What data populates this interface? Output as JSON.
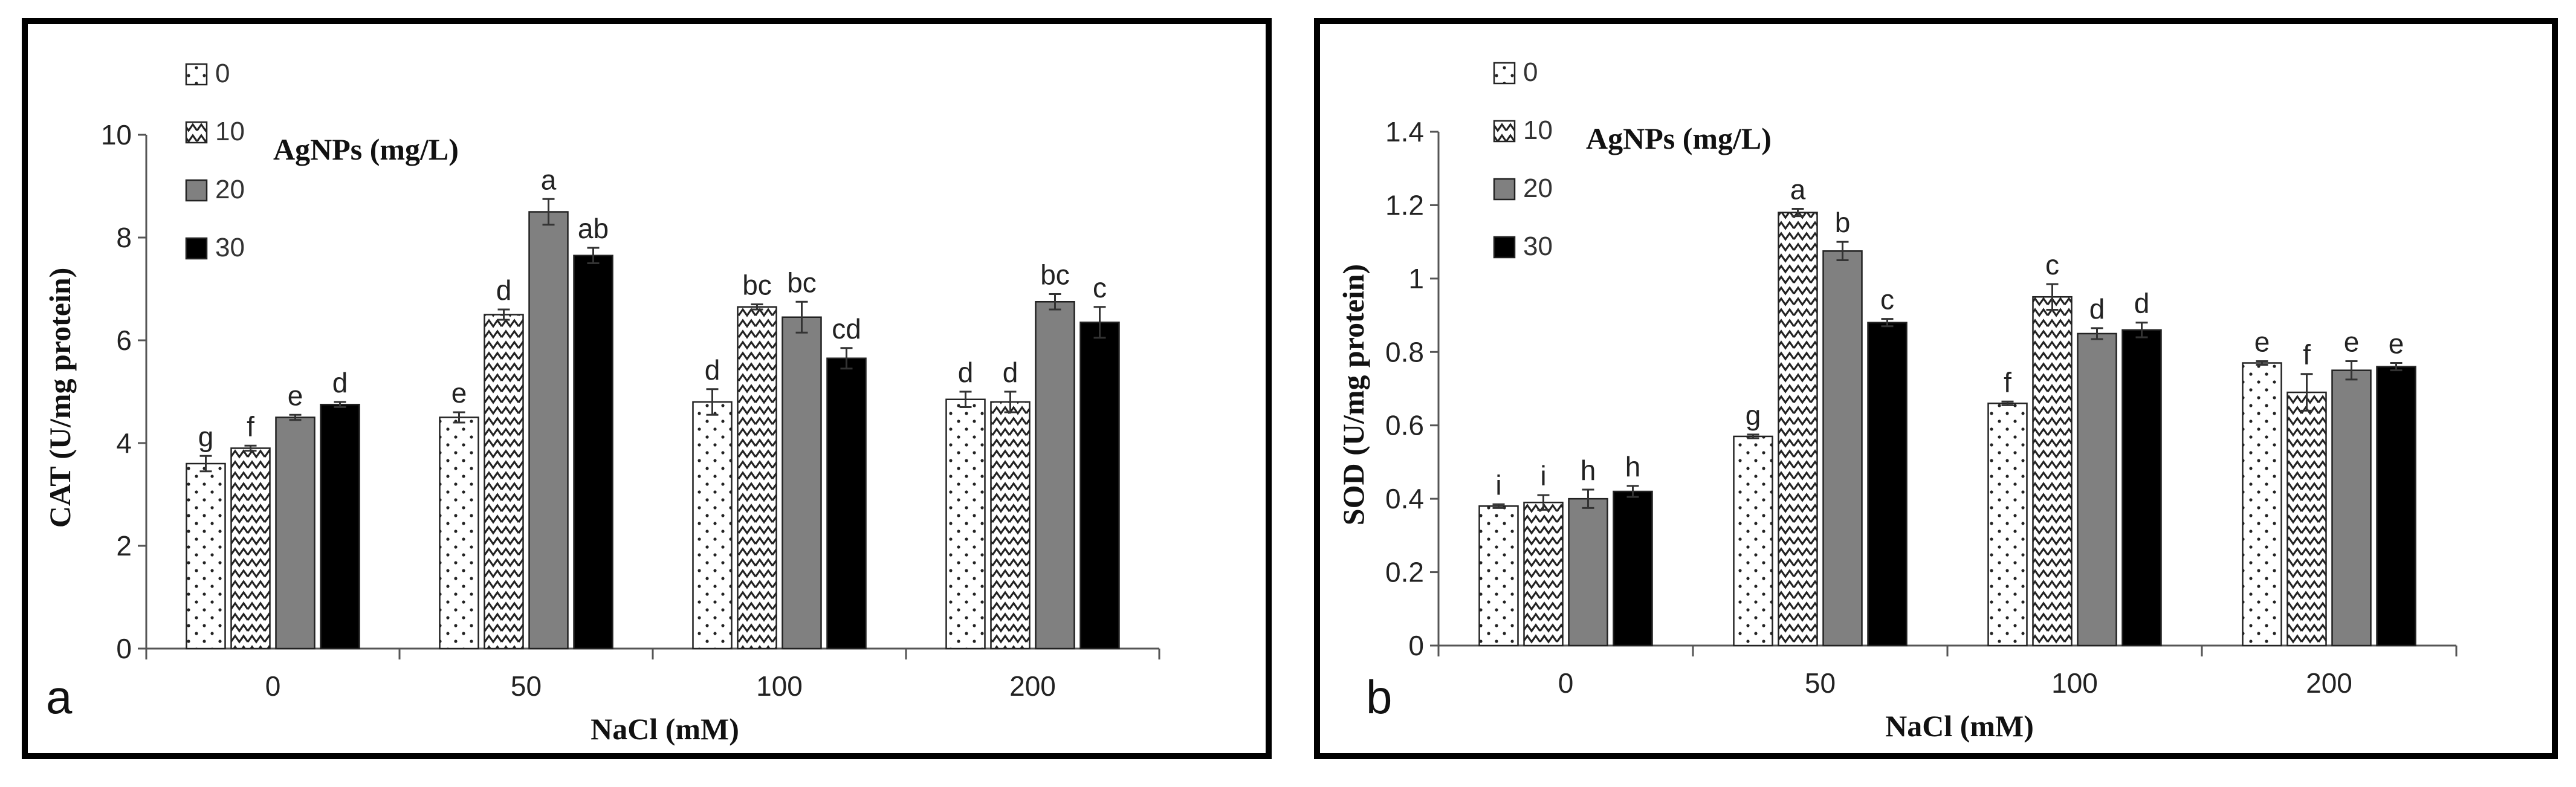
{
  "chart_data": [
    {
      "type": "bar",
      "panel_label": "a",
      "ylabel": "CAT (U/mg protein)",
      "xlabel": "NaCl (mM)",
      "legend_title": "AgNPs (mg/L)",
      "categories": [
        "0",
        "50",
        "100",
        "200"
      ],
      "ylim": [
        0,
        10
      ],
      "yticks": [
        "0",
        "2",
        "4",
        "6",
        "8",
        "10"
      ],
      "series": [
        {
          "name": "0",
          "values": [
            3.6,
            4.5,
            4.8,
            4.85
          ],
          "errors": [
            0.15,
            0.1,
            0.25,
            0.15
          ],
          "letters": [
            "g",
            "e",
            "d",
            "d"
          ]
        },
        {
          "name": "10",
          "values": [
            3.9,
            6.5,
            6.65,
            4.8
          ],
          "errors": [
            0.05,
            0.1,
            0.05,
            0.2
          ],
          "letters": [
            "f",
            "d",
            "bc",
            "d"
          ]
        },
        {
          "name": "20",
          "values": [
            4.5,
            8.5,
            6.45,
            6.75
          ],
          "errors": [
            0.05,
            0.25,
            0.3,
            0.15
          ],
          "letters": [
            "e",
            "a",
            "bc",
            "bc"
          ]
        },
        {
          "name": "30",
          "values": [
            4.75,
            7.65,
            5.65,
            6.35
          ],
          "errors": [
            0.05,
            0.15,
            0.2,
            0.3
          ],
          "letters": [
            "d",
            "ab",
            "cd",
            "c"
          ]
        }
      ],
      "grid": false,
      "legend_position": "top-left"
    },
    {
      "type": "bar",
      "panel_label": "b",
      "ylabel": "SOD (U/mg protein)",
      "xlabel": "NaCl (mM)",
      "legend_title": "AgNPs (mg/L)",
      "categories": [
        "0",
        "50",
        "100",
        "200"
      ],
      "ylim": [
        0,
        1.4
      ],
      "yticks": [
        "0",
        "0.2",
        "0.4",
        "0.6",
        "0.8",
        "1",
        "1.2",
        "1.4"
      ],
      "series": [
        {
          "name": "0",
          "values": [
            0.38,
            0.57,
            0.66,
            0.77
          ],
          "errors": [
            0.005,
            0.005,
            0.005,
            0.005
          ],
          "letters": [
            "i",
            "g",
            "f",
            "e"
          ]
        },
        {
          "name": "10",
          "values": [
            0.39,
            1.18,
            0.95,
            0.69
          ],
          "errors": [
            0.02,
            0.01,
            0.035,
            0.05
          ],
          "letters": [
            "i",
            "a",
            "c",
            "f"
          ]
        },
        {
          "name": "20",
          "values": [
            0.4,
            1.075,
            0.85,
            0.75
          ],
          "errors": [
            0.025,
            0.025,
            0.015,
            0.025
          ],
          "letters": [
            "h",
            "b",
            "d",
            "e"
          ]
        },
        {
          "name": "30",
          "values": [
            0.42,
            0.88,
            0.86,
            0.76
          ],
          "errors": [
            0.015,
            0.01,
            0.02,
            0.01
          ],
          "letters": [
            "h",
            "c",
            "d",
            "e"
          ]
        }
      ],
      "grid": false,
      "legend_position": "top-left"
    }
  ],
  "fills": {
    "series_0": "dots on white",
    "series_1": "zigzag hatch on white",
    "series_2": "#808080",
    "series_3": "#000000"
  }
}
